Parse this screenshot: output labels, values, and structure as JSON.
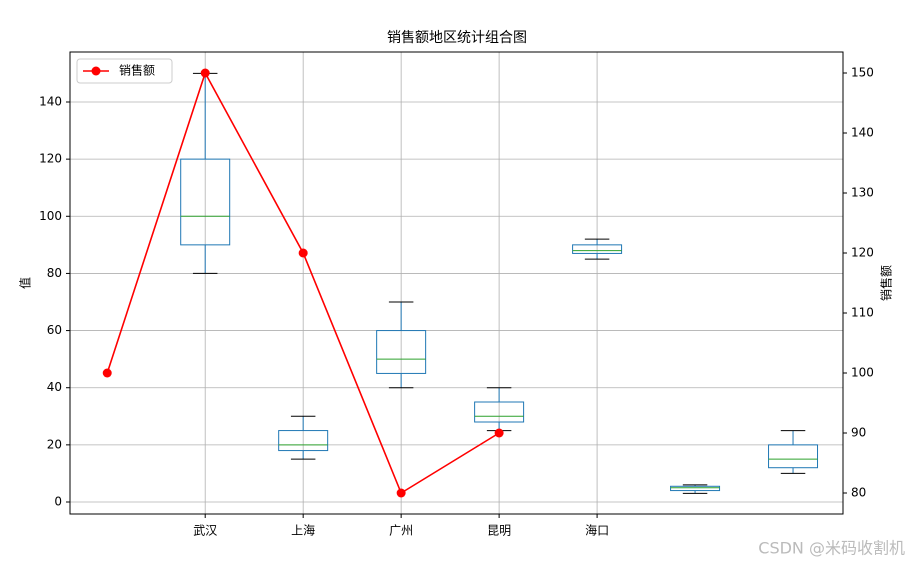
{
  "chart_data": {
    "type": "box-line",
    "title": "销售额地区统计组合图",
    "y_label": "值",
    "y2_label": "销售额",
    "xlim": [
      -0.38,
      7.51
    ],
    "xticks": [
      {
        "value": 1,
        "label": "武汉"
      },
      {
        "value": 2,
        "label": "上海"
      },
      {
        "value": 3,
        "label": "广州"
      },
      {
        "value": 4,
        "label": "昆明"
      },
      {
        "value": 5,
        "label": "海口"
      }
    ],
    "ylim": [
      -4.2,
      157.5
    ],
    "yticks": [
      0,
      20,
      40,
      60,
      80,
      100,
      120,
      140
    ],
    "y2lim": [
      76.5,
      153.5
    ],
    "y2ticks": [
      80,
      90,
      100,
      110,
      120,
      130,
      140,
      150
    ],
    "grid": true,
    "legend": "upper-left",
    "box_color": "#1f77b4",
    "median_color": "#2ca02c",
    "cap_color": "#000000",
    "boxes": [
      {
        "x": 1,
        "whislo": 80,
        "q1": 90,
        "med": 100,
        "q3": 120,
        "whishi": 150
      },
      {
        "x": 2,
        "whislo": 15,
        "q1": 18,
        "med": 20,
        "q3": 25,
        "whishi": 30
      },
      {
        "x": 3,
        "whislo": 40,
        "q1": 45,
        "med": 50,
        "q3": 60,
        "whishi": 70
      },
      {
        "x": 4,
        "whislo": 25,
        "q1": 28,
        "med": 30,
        "q3": 35,
        "whishi": 40
      },
      {
        "x": 5,
        "whislo": 85,
        "q1": 87,
        "med": 88,
        "q3": 90,
        "whishi": 92
      },
      {
        "x": 6,
        "whislo": 3,
        "q1": 4,
        "med": 5,
        "q3": 5.5,
        "whishi": 6
      },
      {
        "x": 7,
        "whislo": 10,
        "q1": 12,
        "med": 15,
        "q3": 20,
        "whishi": 25
      }
    ],
    "series": [
      {
        "name": "销售额",
        "color": "#ff0000",
        "axis": "y2",
        "x": [
          0,
          1,
          2,
          3,
          4
        ],
        "values": [
          100,
          150,
          120,
          80,
          90
        ]
      }
    ],
    "watermark": "CSDN @米码收割机"
  }
}
